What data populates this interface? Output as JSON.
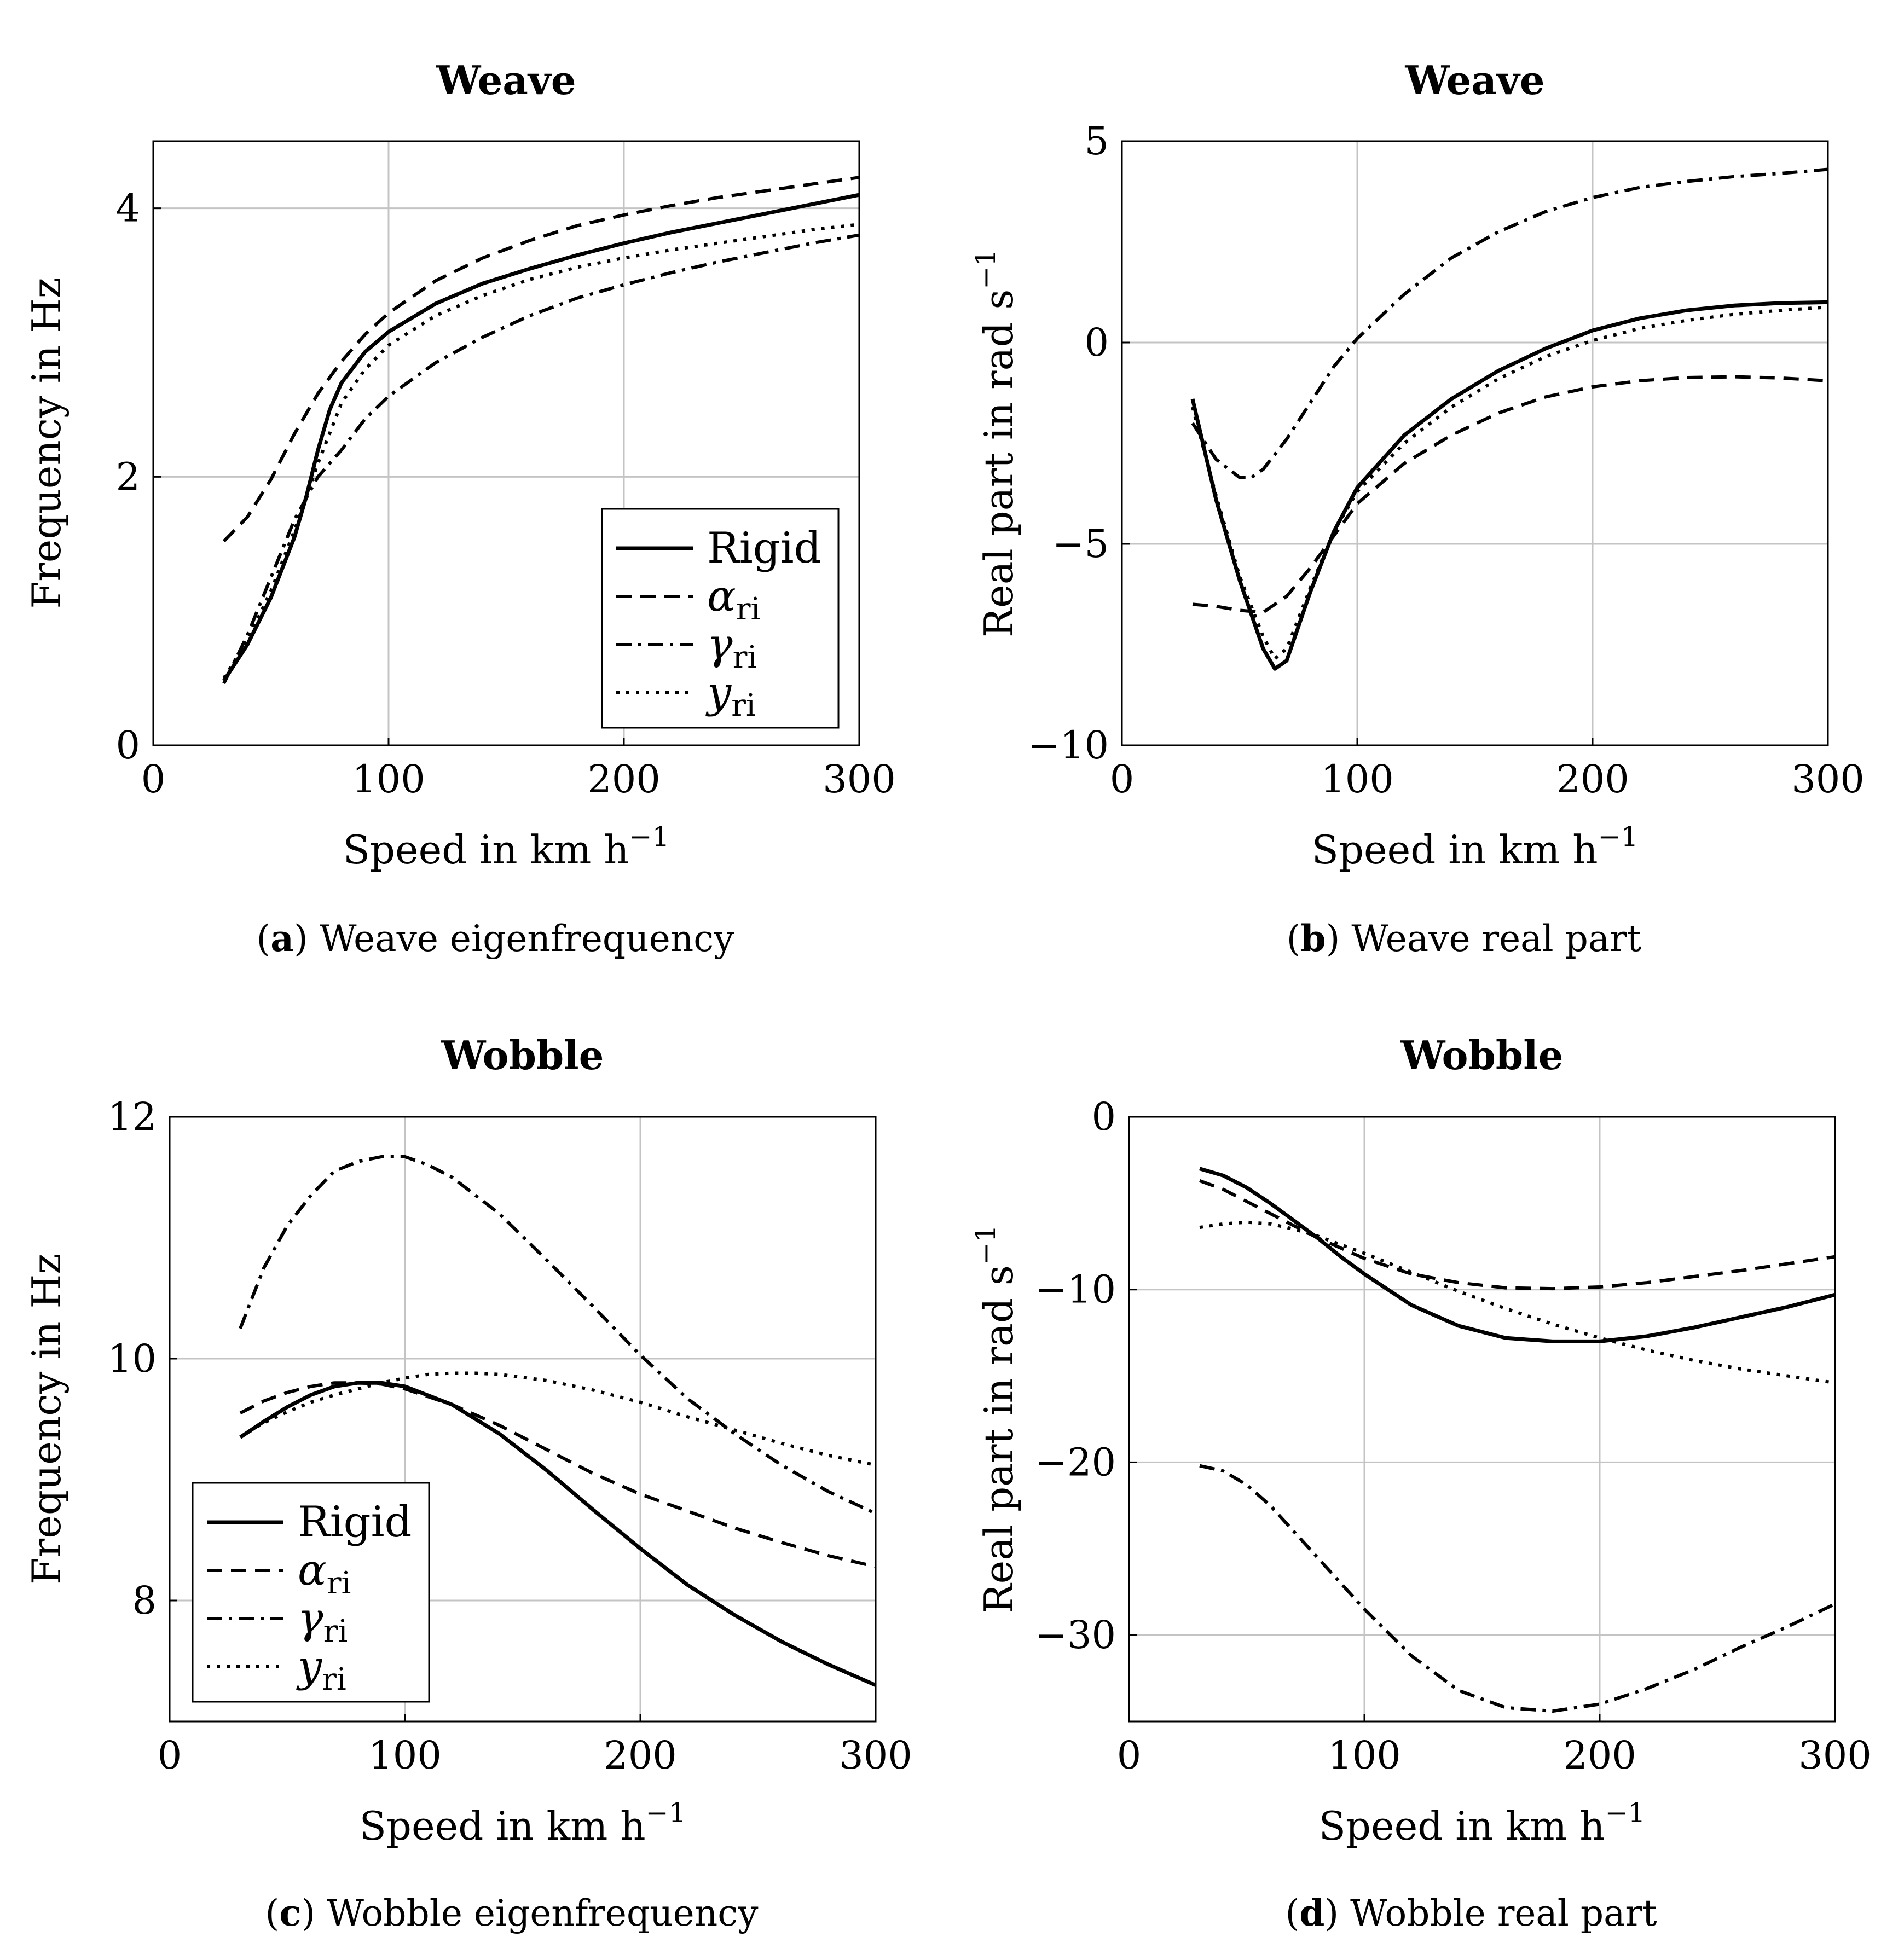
{
  "figure": {
    "panels": [
      {
        "id": "a",
        "caption_letter": "a",
        "caption_text": " Weave eigenfrequency",
        "chart_data": {
          "type": "line",
          "title": "Weave",
          "xlabel": "Speed in km h",
          "xlabel_exp": "−1",
          "ylabel": "Frequency in Hz",
          "xlim": [
            0,
            300
          ],
          "ylim": [
            0,
            4.5
          ],
          "xticks": [
            0,
            100,
            200,
            300
          ],
          "yticks": [
            0,
            2,
            4
          ],
          "xtick_labels": [
            "0",
            "100",
            "200",
            "300"
          ],
          "ytick_labels": [
            "0",
            "2",
            "4"
          ],
          "grid": true,
          "legend_position": "bottom-right",
          "series": [
            {
              "name": "Rigid",
              "style": "solid",
              "x": [
                30,
                40,
                50,
                60,
                65,
                70,
                75,
                80,
                90,
                100,
                120,
                140,
                160,
                180,
                200,
                220,
                240,
                260,
                280,
                300
              ],
              "y": [
                0.48,
                0.75,
                1.1,
                1.55,
                1.85,
                2.2,
                2.5,
                2.7,
                2.93,
                3.08,
                3.29,
                3.44,
                3.55,
                3.65,
                3.74,
                3.82,
                3.89,
                3.96,
                4.03,
                4.1
              ]
            },
            {
              "name": "α",
              "sub": "ri",
              "style": "dashed",
              "x": [
                30,
                40,
                50,
                60,
                70,
                80,
                90,
                100,
                120,
                140,
                160,
                180,
                200,
                220,
                240,
                260,
                280,
                300
              ],
              "y": [
                1.52,
                1.7,
                1.98,
                2.32,
                2.62,
                2.86,
                3.06,
                3.22,
                3.46,
                3.63,
                3.76,
                3.87,
                3.95,
                4.02,
                4.08,
                4.13,
                4.18,
                4.23
              ]
            },
            {
              "name": "γ",
              "sub": "ri",
              "style": "dashdot",
              "x": [
                30,
                40,
                50,
                60,
                70,
                80,
                90,
                100,
                120,
                140,
                160,
                180,
                200,
                220,
                240,
                260,
                280,
                300
              ],
              "y": [
                0.46,
                0.82,
                1.25,
                1.68,
                2.0,
                2.2,
                2.43,
                2.6,
                2.85,
                3.04,
                3.2,
                3.33,
                3.43,
                3.52,
                3.6,
                3.67,
                3.74,
                3.8
              ]
            },
            {
              "name": "y",
              "sub": "ri",
              "style": "dotted",
              "x": [
                30,
                40,
                50,
                60,
                70,
                80,
                90,
                100,
                120,
                140,
                160,
                180,
                200,
                220,
                240,
                260,
                280,
                300
              ],
              "y": [
                0.5,
                0.78,
                1.15,
                1.6,
                2.1,
                2.55,
                2.8,
                2.98,
                3.2,
                3.35,
                3.47,
                3.56,
                3.63,
                3.69,
                3.74,
                3.79,
                3.84,
                3.88
              ]
            }
          ]
        }
      },
      {
        "id": "b",
        "caption_letter": "b",
        "caption_text": " Weave real part",
        "chart_data": {
          "type": "line",
          "title": "Weave",
          "xlabel": "Speed in km h",
          "xlabel_exp": "−1",
          "ylabel": "Real part in rad s",
          "ylabel_exp": "−1",
          "xlim": [
            0,
            300
          ],
          "ylim": [
            -10,
            5
          ],
          "xticks": [
            0,
            100,
            200,
            300
          ],
          "yticks": [
            -10,
            -5,
            0,
            5
          ],
          "xtick_labels": [
            "0",
            "100",
            "200",
            "300"
          ],
          "ytick_labels": [
            "−10",
            "−5",
            "0",
            "5"
          ],
          "grid": true,
          "series": [
            {
              "name": "Rigid",
              "style": "solid",
              "x": [
                30,
                40,
                50,
                60,
                65,
                70,
                80,
                90,
                100,
                120,
                140,
                160,
                180,
                200,
                220,
                240,
                260,
                280,
                300
              ],
              "y": [
                -1.4,
                -3.9,
                -5.9,
                -7.6,
                -8.1,
                -7.9,
                -6.2,
                -4.7,
                -3.6,
                -2.3,
                -1.4,
                -0.7,
                -0.15,
                0.3,
                0.6,
                0.8,
                0.92,
                0.98,
                1.0
              ]
            },
            {
              "name": "α",
              "sub": "ri",
              "style": "dashed",
              "x": [
                30,
                40,
                50,
                60,
                70,
                80,
                90,
                100,
                120,
                140,
                160,
                180,
                200,
                220,
                240,
                260,
                280,
                300
              ],
              "y": [
                -6.5,
                -6.55,
                -6.65,
                -6.7,
                -6.3,
                -5.6,
                -4.8,
                -4.0,
                -3.0,
                -2.3,
                -1.75,
                -1.35,
                -1.1,
                -0.95,
                -0.87,
                -0.85,
                -0.88,
                -0.95
              ]
            },
            {
              "name": "γ",
              "sub": "ri",
              "style": "dashdot",
              "x": [
                30,
                40,
                50,
                55,
                60,
                70,
                80,
                90,
                100,
                120,
                140,
                160,
                180,
                200,
                220,
                240,
                260,
                280,
                300
              ],
              "y": [
                -2.0,
                -2.9,
                -3.35,
                -3.35,
                -3.15,
                -2.4,
                -1.5,
                -0.6,
                0.1,
                1.2,
                2.1,
                2.75,
                3.25,
                3.6,
                3.85,
                4.0,
                4.12,
                4.2,
                4.3
              ]
            },
            {
              "name": "y",
              "sub": "ri",
              "style": "dotted",
              "x": [
                30,
                40,
                50,
                60,
                65,
                70,
                80,
                90,
                100,
                120,
                140,
                160,
                180,
                200,
                220,
                240,
                260,
                280,
                300
              ],
              "y": [
                -1.6,
                -3.8,
                -5.8,
                -7.3,
                -7.85,
                -7.6,
                -6.1,
                -4.7,
                -3.7,
                -2.5,
                -1.6,
                -0.9,
                -0.35,
                0.05,
                0.35,
                0.55,
                0.7,
                0.8,
                0.88
              ]
            }
          ]
        }
      },
      {
        "id": "c",
        "caption_letter": "c",
        "caption_text": " Wobble eigenfrequency",
        "chart_data": {
          "type": "line",
          "title": "Wobble",
          "xlabel": "Speed in km h",
          "xlabel_exp": "−1",
          "ylabel": "Frequency in Hz",
          "xlim": [
            0,
            300
          ],
          "ylim": [
            7.0,
            12.0
          ],
          "xticks": [
            0,
            100,
            200,
            300
          ],
          "yticks": [
            8,
            10,
            12
          ],
          "xtick_labels": [
            "0",
            "100",
            "200",
            "300"
          ],
          "ytick_labels": [
            "8",
            "10",
            "12"
          ],
          "grid": true,
          "legend_position": "bottom-left",
          "series": [
            {
              "name": "Rigid",
              "style": "solid",
              "x": [
                30,
                40,
                50,
                60,
                70,
                80,
                90,
                100,
                120,
                140,
                160,
                180,
                200,
                220,
                240,
                260,
                280,
                300
              ],
              "y": [
                9.35,
                9.48,
                9.6,
                9.7,
                9.77,
                9.8,
                9.8,
                9.77,
                9.62,
                9.38,
                9.08,
                8.75,
                8.43,
                8.13,
                7.88,
                7.66,
                7.47,
                7.3
              ]
            },
            {
              "name": "α",
              "sub": "ri",
              "style": "dashed",
              "x": [
                30,
                40,
                50,
                60,
                70,
                80,
                90,
                100,
                120,
                140,
                160,
                180,
                200,
                220,
                240,
                260,
                280,
                300
              ],
              "y": [
                9.55,
                9.65,
                9.72,
                9.77,
                9.8,
                9.8,
                9.79,
                9.75,
                9.62,
                9.45,
                9.25,
                9.05,
                8.88,
                8.74,
                8.6,
                8.48,
                8.37,
                8.28
              ]
            },
            {
              "name": "γ",
              "sub": "ri",
              "style": "dashdot",
              "x": [
                30,
                40,
                50,
                60,
                70,
                80,
                90,
                100,
                110,
                120,
                140,
                160,
                180,
                200,
                220,
                240,
                260,
                280,
                300
              ],
              "y": [
                10.25,
                10.75,
                11.1,
                11.35,
                11.55,
                11.63,
                11.67,
                11.67,
                11.6,
                11.5,
                11.2,
                10.82,
                10.43,
                10.03,
                9.67,
                9.38,
                9.12,
                8.9,
                8.72
              ]
            },
            {
              "name": "y",
              "sub": "ri",
              "style": "dotted",
              "x": [
                30,
                40,
                50,
                60,
                70,
                80,
                90,
                100,
                110,
                120,
                130,
                140,
                160,
                180,
                200,
                220,
                240,
                260,
                280,
                300
              ],
              "y": [
                9.35,
                9.47,
                9.56,
                9.64,
                9.7,
                9.75,
                9.8,
                9.84,
                9.87,
                9.88,
                9.88,
                9.87,
                9.82,
                9.74,
                9.64,
                9.52,
                9.41,
                9.3,
                9.2,
                9.12
              ]
            }
          ]
        }
      },
      {
        "id": "d",
        "caption_letter": "d",
        "caption_text": " Wobble real part",
        "chart_data": {
          "type": "line",
          "title": "Wobble",
          "xlabel": "Speed in km h",
          "xlabel_exp": "−1",
          "ylabel": "Real part in rad s",
          "ylabel_exp": "−1",
          "xlim": [
            0,
            300
          ],
          "ylim": [
            -35,
            0
          ],
          "xticks": [
            0,
            100,
            200,
            300
          ],
          "yticks": [
            -30,
            -20,
            -10,
            0
          ],
          "xtick_labels": [
            "0",
            "100",
            "200",
            "300"
          ],
          "ytick_labels": [
            "−30",
            "−20",
            "−10",
            "0"
          ],
          "grid": true,
          "series": [
            {
              "name": "Rigid",
              "style": "solid",
              "x": [
                30,
                40,
                50,
                60,
                70,
                80,
                90,
                100,
                120,
                140,
                160,
                180,
                200,
                220,
                240,
                260,
                280,
                300
              ],
              "y": [
                -3.0,
                -3.4,
                -4.1,
                -5.0,
                -6.0,
                -7.0,
                -8.1,
                -9.1,
                -10.9,
                -12.1,
                -12.8,
                -13.0,
                -13.0,
                -12.7,
                -12.2,
                -11.6,
                -11.0,
                -10.3
              ]
            },
            {
              "name": "α",
              "sub": "ri",
              "style": "dashed",
              "x": [
                30,
                40,
                50,
                60,
                70,
                80,
                90,
                100,
                120,
                140,
                160,
                180,
                200,
                220,
                240,
                260,
                280,
                300
              ],
              "y": [
                -3.7,
                -4.2,
                -4.9,
                -5.6,
                -6.3,
                -7.0,
                -7.6,
                -8.2,
                -9.1,
                -9.6,
                -9.9,
                -9.95,
                -9.85,
                -9.6,
                -9.25,
                -8.9,
                -8.5,
                -8.1
              ]
            },
            {
              "name": "γ",
              "sub": "ri",
              "style": "dashdot",
              "x": [
                30,
                40,
                50,
                60,
                70,
                80,
                90,
                100,
                120,
                140,
                160,
                180,
                200,
                220,
                240,
                260,
                280,
                300
              ],
              "y": [
                -20.2,
                -20.5,
                -21.3,
                -22.5,
                -24.0,
                -25.5,
                -27.0,
                -28.5,
                -31.2,
                -33.2,
                -34.2,
                -34.4,
                -34.0,
                -33.1,
                -32.0,
                -30.7,
                -29.5,
                -28.2
              ]
            },
            {
              "name": "y",
              "sub": "ri",
              "style": "dotted",
              "x": [
                30,
                40,
                50,
                60,
                70,
                80,
                90,
                100,
                120,
                140,
                160,
                180,
                200,
                220,
                240,
                260,
                280,
                300
              ],
              "y": [
                -6.4,
                -6.2,
                -6.1,
                -6.2,
                -6.5,
                -6.9,
                -7.4,
                -7.9,
                -9.0,
                -10.1,
                -11.1,
                -12.0,
                -12.8,
                -13.5,
                -14.1,
                -14.6,
                -15.0,
                -15.4
              ]
            }
          ]
        }
      }
    ]
  }
}
